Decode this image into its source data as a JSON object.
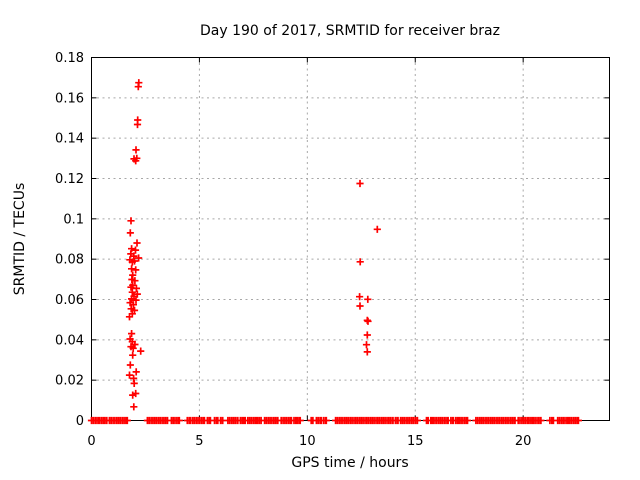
{
  "window": {
    "background": "#ffffff"
  },
  "chart_data": {
    "type": "scatter",
    "title": "Day 190 of 2017, SRMTID for receiver braz",
    "xlabel": "GPS time / hours",
    "ylabel": "SRMTID / TECUs",
    "xlim": [
      0,
      24
    ],
    "ylim": [
      0,
      0.18
    ],
    "grid": true,
    "legend_position": "none",
    "marker": "plus-cross",
    "colors": {
      "points": "#ff0000",
      "grid": "#a8a8a8",
      "axis": "#000000",
      "text": "#000000",
      "background": "#ffffff"
    },
    "xticks": {
      "values": [
        0,
        5,
        10,
        15,
        20
      ],
      "labels": [
        "0",
        "5",
        "10",
        "15",
        "20"
      ]
    },
    "yticks": {
      "values": [
        0,
        0.02,
        0.04,
        0.06,
        0.08,
        0.1,
        0.12,
        0.14,
        0.16,
        0.18
      ],
      "labels": [
        "0",
        "0.02",
        "0.04",
        "0.06",
        "0.08",
        "0.1",
        "0.12",
        "0.14",
        "0.16",
        "0.18"
      ]
    },
    "series": [
      {
        "name": "SRMTID",
        "points": [
          [
            2.19,
            0.1675
          ],
          [
            2.17,
            0.1655
          ],
          [
            2.14,
            0.149
          ],
          [
            2.13,
            0.1468
          ],
          [
            2.06,
            0.1342
          ],
          [
            1.97,
            0.1297
          ],
          [
            2.1,
            0.13
          ],
          [
            2.05,
            0.1288
          ],
          [
            1.83,
            0.099
          ],
          [
            1.8,
            0.093
          ],
          [
            2.11,
            0.088
          ],
          [
            1.86,
            0.0852
          ],
          [
            2.04,
            0.0845
          ],
          [
            1.82,
            0.0826
          ],
          [
            1.96,
            0.0815
          ],
          [
            2.18,
            0.0806
          ],
          [
            1.78,
            0.0797
          ],
          [
            1.99,
            0.0791
          ],
          [
            1.89,
            0.0786
          ],
          [
            1.86,
            0.0752
          ],
          [
            2.05,
            0.0747
          ],
          [
            1.91,
            0.0721
          ],
          [
            1.87,
            0.0699
          ],
          [
            2.01,
            0.0693
          ],
          [
            1.91,
            0.0671
          ],
          [
            1.83,
            0.0661
          ],
          [
            2.08,
            0.0655
          ],
          [
            1.89,
            0.0636
          ],
          [
            2.12,
            0.0627
          ],
          [
            1.97,
            0.0616
          ],
          [
            1.86,
            0.0603
          ],
          [
            2.06,
            0.0597
          ],
          [
            1.79,
            0.0584
          ],
          [
            1.94,
            0.0574
          ],
          [
            1.84,
            0.0554
          ],
          [
            1.99,
            0.0546
          ],
          [
            1.89,
            0.0529
          ],
          [
            1.76,
            0.0514
          ],
          [
            1.86,
            0.0431
          ],
          [
            1.79,
            0.0404
          ],
          [
            1.89,
            0.0391
          ],
          [
            2.01,
            0.0377
          ],
          [
            1.83,
            0.0366
          ],
          [
            1.93,
            0.0358
          ],
          [
            2.28,
            0.0344
          ],
          [
            1.91,
            0.0324
          ],
          [
            1.8,
            0.0275
          ],
          [
            2.07,
            0.0241
          ],
          [
            1.76,
            0.0225
          ],
          [
            1.95,
            0.0209
          ],
          [
            1.98,
            0.0184
          ],
          [
            2.05,
            0.0134
          ],
          [
            1.91,
            0.0126
          ],
          [
            1.96,
            0.0068
          ],
          [
            12.44,
            0.1175
          ],
          [
            13.24,
            0.0948
          ],
          [
            12.45,
            0.0787
          ],
          [
            12.42,
            0.0614
          ],
          [
            12.8,
            0.0601
          ],
          [
            12.44,
            0.0568
          ],
          [
            12.78,
            0.0497
          ],
          [
            12.81,
            0.0492
          ],
          [
            12.78,
            0.0424
          ],
          [
            12.74,
            0.0376
          ],
          [
            12.78,
            0.034
          ]
        ]
      }
    ],
    "baseline_value": 0,
    "baseline_segments_hours": [
      [
        0,
        0.36
      ],
      [
        0.45,
        0.55
      ],
      [
        0.62,
        0.71
      ],
      [
        0.83,
        1.66
      ],
      [
        2.59,
        3.01
      ],
      [
        3.1,
        3.52
      ],
      [
        3.7,
        4.07
      ],
      [
        4.44,
        4.58
      ],
      [
        4.68,
        5.23
      ],
      [
        5.37,
        5.51
      ],
      [
        5.7,
        5.85
      ],
      [
        5.98,
        6.08
      ],
      [
        6.32,
        6.78
      ],
      [
        6.9,
        6.98
      ],
      [
        7.06,
        7.12
      ],
      [
        7.24,
        7.63
      ],
      [
        7.69,
        7.86
      ],
      [
        8.02,
        8.63
      ],
      [
        8.79,
        9.26
      ],
      [
        9.38,
        9.49
      ],
      [
        9.53,
        9.67
      ],
      [
        10.18,
        10.26
      ],
      [
        10.42,
        10.65
      ],
      [
        10.76,
        10.88
      ],
      [
        11.31,
        13.97
      ],
      [
        14.08,
        14.2
      ],
      [
        14.32,
        15.1
      ],
      [
        15.52,
        15.6
      ],
      [
        15.72,
        15.78
      ],
      [
        15.83,
        16.52
      ],
      [
        16.65,
        16.76
      ],
      [
        16.87,
        16.96
      ],
      [
        17.04,
        17.42
      ],
      [
        17.81,
        19.62
      ],
      [
        19.77,
        20.24
      ],
      [
        20.32,
        20.42
      ],
      [
        20.47,
        20.82
      ],
      [
        21.24,
        21.4
      ],
      [
        21.6,
        22.09
      ],
      [
        22.17,
        22.56
      ]
    ]
  }
}
